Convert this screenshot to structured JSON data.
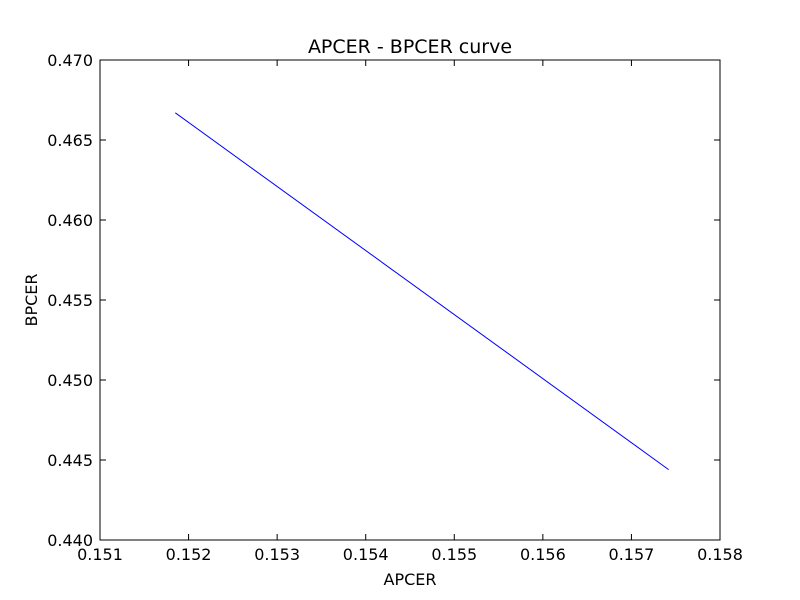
{
  "chart_data": {
    "type": "line",
    "title": "APCER - BPCER curve",
    "xlabel": "APCER",
    "ylabel": "BPCER",
    "xlim": [
      0.151,
      0.158
    ],
    "ylim": [
      0.44,
      0.47
    ],
    "x_ticks": [
      "0.151",
      "0.152",
      "0.153",
      "0.154",
      "0.155",
      "0.156",
      "0.157",
      "0.158"
    ],
    "y_ticks": [
      "0.440",
      "0.445",
      "0.450",
      "0.455",
      "0.460",
      "0.465",
      "0.470"
    ],
    "grid": false,
    "series": [
      {
        "color": "#0000ff",
        "x": [
          0.15185,
          0.15742
        ],
        "y": [
          0.4667,
          0.4444
        ]
      }
    ]
  }
}
